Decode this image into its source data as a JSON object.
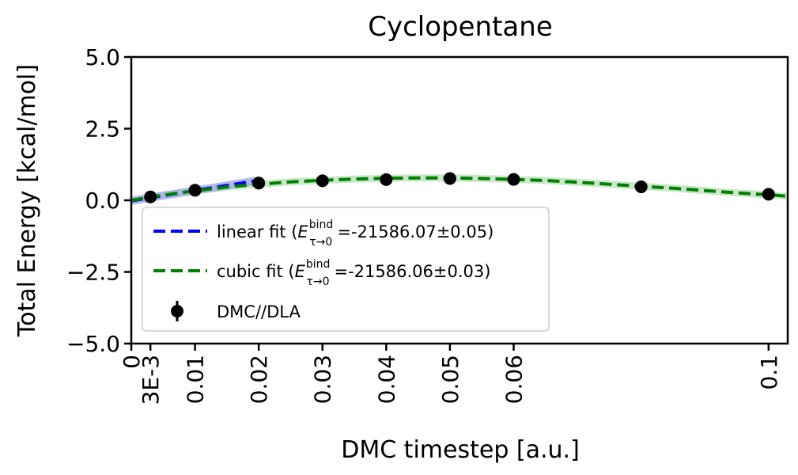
{
  "chart_data": {
    "type": "line",
    "title": "Cyclopentane",
    "xlabel": "DMC timestep [a.u.]",
    "ylabel": "Total Energy [kcal/mol]",
    "xlim": [
      0,
      0.103
    ],
    "ylim": [
      -5.0,
      5.0
    ],
    "x_ticks": [
      0,
      0.003,
      0.01,
      0.02,
      0.03,
      0.04,
      0.05,
      0.06,
      0.1
    ],
    "x_tick_labels": [
      "0",
      "3E-3",
      "0.01",
      "0.02",
      "0.03",
      "0.04",
      "0.05",
      "0.06",
      "0.1"
    ],
    "y_ticks": [
      5.0,
      2.5,
      0.0,
      -2.5,
      -5.0
    ],
    "y_tick_labels": [
      "5.0",
      "2.5",
      "0.0",
      "−2.5",
      "−5.0"
    ],
    "grid": false,
    "legend_position": "lower-left",
    "series": [
      {
        "name": "DMC//DLA",
        "kind": "scatter",
        "color": "#000000",
        "x": [
          0.003,
          0.01,
          0.02,
          0.03,
          0.04,
          0.05,
          0.06,
          0.08,
          0.1
        ],
        "y": [
          0.12,
          0.35,
          0.6,
          0.68,
          0.72,
          0.76,
          0.73,
          0.47,
          0.21
        ]
      },
      {
        "name": "linear fit",
        "kind": "line",
        "style": "dashed",
        "color": "#0000ff",
        "band_color": "#a0a8e8",
        "x": [
          0,
          0.02
        ],
        "y": [
          -0.02,
          0.7
        ],
        "energy_label": "-21586.07±0.05"
      },
      {
        "name": "cubic fit",
        "kind": "line",
        "style": "dashed",
        "color": "#008000",
        "band_color": "#c4e4c4",
        "x": [
          0,
          0.005,
          0.01,
          0.015,
          0.02,
          0.025,
          0.03,
          0.035,
          0.04,
          0.045,
          0.05,
          0.055,
          0.06,
          0.065,
          0.07,
          0.075,
          0.08,
          0.085,
          0.09,
          0.095,
          0.1,
          0.103
        ],
        "y": [
          0.0,
          0.18,
          0.33,
          0.46,
          0.56,
          0.64,
          0.7,
          0.74,
          0.77,
          0.78,
          0.78,
          0.76,
          0.73,
          0.69,
          0.63,
          0.56,
          0.49,
          0.42,
          0.34,
          0.26,
          0.19,
          0.14
        ],
        "energy_label": "-21586.06±0.03"
      }
    ],
    "legend": {
      "energy_symbol": "E",
      "energy_sup": "bind",
      "energy_sub": "τ→0",
      "equals": "="
    }
  }
}
